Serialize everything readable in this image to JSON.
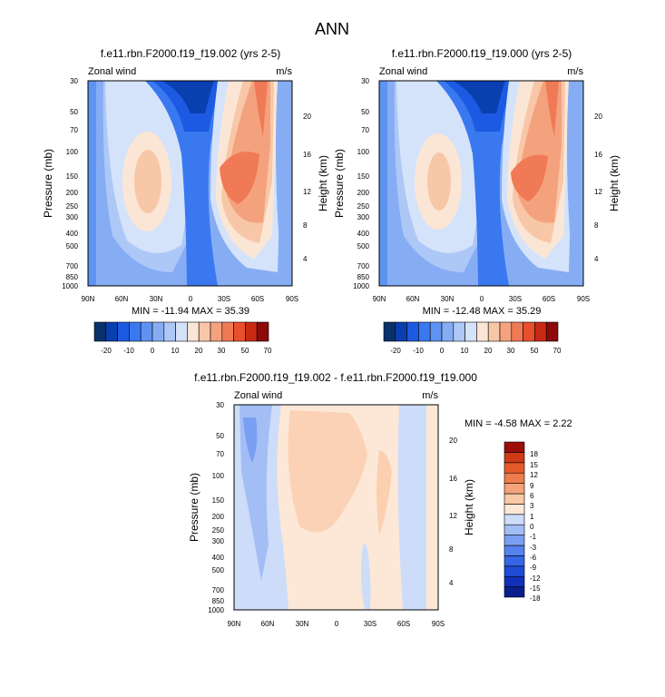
{
  "title": "ANN",
  "colors": {
    "scale": [
      "#08306b",
      "#0a3fb0",
      "#1c5ae3",
      "#3a78f0",
      "#5f93f2",
      "#86adf4",
      "#adc8f6",
      "#d4e3fa",
      "#fbe6d6",
      "#f8c7a8",
      "#f4a27e",
      "#f07a55",
      "#e84f2c",
      "#c82a14",
      "#8c0a0a"
    ],
    "diff_scale": [
      "#0a1e8c",
      "#1030b8",
      "#1f4bd6",
      "#3466e6",
      "#5582ee",
      "#7a9ff2",
      "#a3bdf5",
      "#cddcf9",
      "#fde8d7",
      "#f9c9a8",
      "#f4a37a",
      "#ef7c4c",
      "#e65a2a",
      "#cf3a16",
      "#9b0e0a"
    ]
  },
  "chart_data": [
    {
      "type": "heatmap",
      "title": "f.e11.rbn.F2000.f19_f19.002 (yrs 2-5)",
      "left_label": "Zonal wind",
      "right_label": "m/s",
      "ylabel": "Pressure (mb)",
      "ylabel_right": "Height (km)",
      "x_ticks": [
        "90N",
        "60N",
        "30N",
        "0",
        "30S",
        "60S",
        "90S"
      ],
      "y_ticks": [
        "30",
        "50",
        "70",
        "100",
        "150",
        "200",
        "250",
        "300",
        "400",
        "500",
        "700",
        "850",
        "1000"
      ],
      "y_right_ticks": [
        "20",
        "16",
        "12",
        "8",
        "4"
      ],
      "stats": "MIN = -11.94  MAX =  35.39",
      "colorbar_labels": [
        "-20",
        "-10",
        "0",
        "10",
        "20",
        "30",
        "50",
        "70"
      ],
      "min": -11.94,
      "max": 35.39
    },
    {
      "type": "heatmap",
      "title": "f.e11.rbn.F2000.f19_f19.000 (yrs 2-5)",
      "left_label": "Zonal wind",
      "right_label": "m/s",
      "ylabel": "Pressure (mb)",
      "ylabel_right": "Height (km)",
      "x_ticks": [
        "90N",
        "60N",
        "30N",
        "0",
        "30S",
        "60S",
        "90S"
      ],
      "y_ticks": [
        "30",
        "50",
        "70",
        "100",
        "150",
        "200",
        "250",
        "300",
        "400",
        "500",
        "700",
        "850",
        "1000"
      ],
      "y_right_ticks": [
        "20",
        "16",
        "12",
        "8",
        "4"
      ],
      "stats": "MIN = -12.48  MAX =  35.29",
      "colorbar_labels": [
        "-20",
        "-10",
        "0",
        "10",
        "20",
        "30",
        "50",
        "70"
      ],
      "min": -12.48,
      "max": 35.29
    },
    {
      "type": "heatmap",
      "title": "f.e11.rbn.F2000.f19_f19.002 - f.e11.rbn.F2000.f19_f19.000",
      "left_label": "Zonal wind",
      "right_label": "m/s",
      "ylabel": "Pressure (mb)",
      "ylabel_right": "Height (km)",
      "x_ticks": [
        "90N",
        "60N",
        "30N",
        "0",
        "30S",
        "60S",
        "90S"
      ],
      "y_ticks": [
        "30",
        "50",
        "70",
        "100",
        "150",
        "200",
        "250",
        "300",
        "400",
        "500",
        "700",
        "850",
        "1000"
      ],
      "y_right_ticks": [
        "20",
        "16",
        "12",
        "8",
        "4"
      ],
      "stats": "MIN =  -4.58  MAX =   2.22",
      "colorbar_labels": [
        "18",
        "15",
        "12",
        "9",
        "6",
        "3",
        "1",
        "0",
        "-1",
        "-3",
        "-6",
        "-9",
        "-12",
        "-15",
        "-18"
      ],
      "min": -4.58,
      "max": 2.22
    }
  ]
}
